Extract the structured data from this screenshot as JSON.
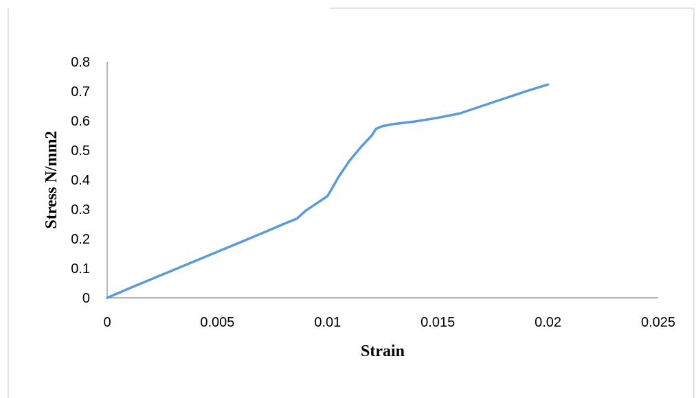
{
  "chart_data": {
    "type": "line",
    "title": "",
    "xlabel": "Strain",
    "ylabel": "Stress N/mm2",
    "xlim": [
      0,
      0.025
    ],
    "ylim": [
      0,
      0.8
    ],
    "x_ticks": [
      "0",
      "0.005",
      "0.01",
      "0.015",
      "0.02",
      "0.025"
    ],
    "y_ticks": [
      "0",
      "0.1",
      "0.2",
      "0.3",
      "0.4",
      "0.5",
      "0.6",
      "0.7",
      "0.8"
    ],
    "grid": false,
    "legend": "none",
    "series": [
      {
        "color": "#5b9bd5",
        "x": [
          0,
          0.001,
          0.002,
          0.003,
          0.004,
          0.005,
          0.006,
          0.007,
          0.008,
          0.0086,
          0.009,
          0.0095,
          0.01,
          0.0105,
          0.011,
          0.0115,
          0.012,
          0.0122,
          0.0125,
          0.013,
          0.014,
          0.015,
          0.016,
          0.017,
          0.018,
          0.019,
          0.02
        ],
        "y": [
          0,
          0.032,
          0.063,
          0.094,
          0.125,
          0.156,
          0.187,
          0.218,
          0.25,
          0.268,
          0.295,
          0.32,
          0.345,
          0.41,
          0.465,
          0.51,
          0.55,
          0.573,
          0.582,
          0.589,
          0.598,
          0.61,
          0.625,
          0.65,
          0.675,
          0.7,
          0.723
        ]
      }
    ]
  }
}
